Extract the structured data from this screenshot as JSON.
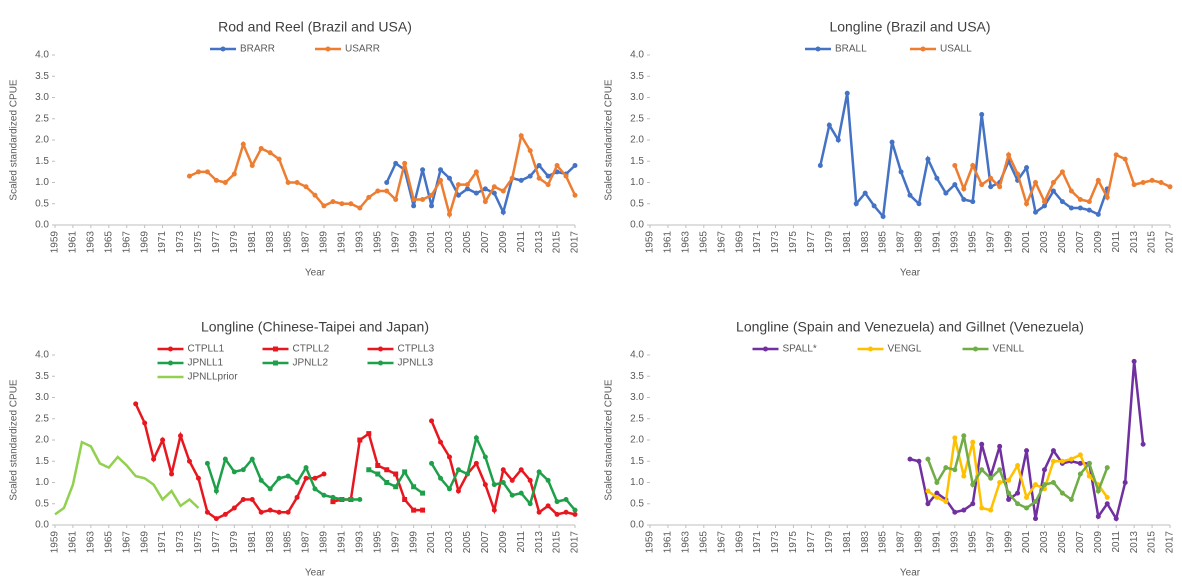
{
  "chart_data": [
    {
      "type": "line",
      "title": "Rod and Reel (Brazil and USA)",
      "xlabel": "Year",
      "ylabel": "Scaled standardized CPUE",
      "xlim": [
        1959,
        2017
      ],
      "xticks": [
        1959,
        1961,
        1963,
        1965,
        1967,
        1969,
        1971,
        1973,
        1975,
        1977,
        1979,
        1981,
        1983,
        1985,
        1987,
        1989,
        1991,
        1993,
        1995,
        1997,
        1999,
        2001,
        2003,
        2005,
        2007,
        2009,
        2011,
        2013,
        2015,
        2017
      ],
      "ylim": [
        0,
        4
      ],
      "yticks": [
        {
          "value": 0,
          "label": "0.0"
        },
        {
          "value": 0.5,
          "label": "0.5"
        },
        {
          "value": 1,
          "label": "1.0"
        },
        {
          "value": 1.5,
          "label": "1.5"
        },
        {
          "value": 2,
          "label": "2.0"
        },
        {
          "value": 2.5,
          "label": "2.5"
        },
        {
          "value": 3,
          "label": "3.0"
        },
        {
          "value": 3.5,
          "label": "3.5"
        },
        {
          "value": 4,
          "label": "4.0"
        }
      ],
      "series": [
        {
          "name": "BRARR",
          "color": "#4472c4",
          "marker": "circle",
          "x": [
            1996,
            1997,
            1998,
            1999,
            2000,
            2001,
            2002,
            2003,
            2004,
            2005,
            2006,
            2007,
            2008,
            2009,
            2010,
            2011,
            2012,
            2013,
            2014,
            2015,
            2016,
            2017
          ],
          "values": [
            1.0,
            1.45,
            1.3,
            0.45,
            1.3,
            0.45,
            1.3,
            1.1,
            0.7,
            0.85,
            0.75,
            0.85,
            0.75,
            0.3,
            1.1,
            1.05,
            1.15,
            1.4,
            1.15,
            1.25,
            1.2,
            1.4
          ]
        },
        {
          "name": "USARR",
          "color": "#ed7d31",
          "marker": "circle",
          "x": [
            1974,
            1975,
            1976,
            1977,
            1978,
            1979,
            1980,
            1981,
            1982,
            1983,
            1984,
            1985,
            1986,
            1987,
            1988,
            1989,
            1990,
            1991,
            1992,
            1993,
            1994,
            1995,
            1996,
            1997,
            1998,
            1999,
            2000,
            2001,
            2002,
            2003,
            2004,
            2005,
            2006,
            2007,
            2008,
            2009,
            2010,
            2011,
            2012,
            2013,
            2014,
            2015,
            2016,
            2017
          ],
          "values": [
            1.15,
            1.25,
            1.25,
            1.05,
            1.0,
            1.2,
            1.9,
            1.4,
            1.8,
            1.7,
            1.55,
            1.0,
            1.0,
            0.9,
            0.7,
            0.45,
            0.55,
            0.5,
            0.5,
            0.4,
            0.65,
            0.8,
            0.8,
            0.6,
            1.45,
            0.6,
            0.6,
            0.7,
            1.05,
            0.25,
            0.95,
            0.95,
            1.25,
            0.55,
            0.9,
            0.8,
            1.1,
            2.1,
            1.75,
            1.1,
            0.95,
            1.4,
            1.15,
            0.7
          ]
        }
      ]
    },
    {
      "type": "line",
      "title": "Longline (Brazil and USA)",
      "xlabel": "Year",
      "ylabel": "Scaled standardized CPUE",
      "xlim": [
        1959,
        2017
      ],
      "xticks": [
        1959,
        1961,
        1963,
        1965,
        1967,
        1969,
        1971,
        1973,
        1975,
        1977,
        1979,
        1981,
        1983,
        1985,
        1987,
        1989,
        1991,
        1993,
        1995,
        1997,
        1999,
        2001,
        2003,
        2005,
        2007,
        2009,
        2011,
        2013,
        2015,
        2017
      ],
      "ylim": [
        0,
        4
      ],
      "yticks": [
        {
          "value": 0,
          "label": "0.0"
        },
        {
          "value": 0.5,
          "label": "0.5"
        },
        {
          "value": 1,
          "label": "1.0"
        },
        {
          "value": 1.5,
          "label": "1.5"
        },
        {
          "value": 2,
          "label": "2.0"
        },
        {
          "value": 2.5,
          "label": "2.5"
        },
        {
          "value": 3,
          "label": "3.0"
        },
        {
          "value": 3.5,
          "label": "3.5"
        },
        {
          "value": 4,
          "label": "4.0"
        }
      ],
      "series": [
        {
          "name": "BRALL",
          "color": "#4472c4",
          "marker": "circle",
          "x": [
            1978,
            1979,
            1980,
            1981,
            1982,
            1983,
            1984,
            1985,
            1986,
            1987,
            1988,
            1989,
            1990,
            1991,
            1992,
            1993,
            1994,
            1995,
            1996,
            1997,
            1998,
            1999,
            2000,
            2001,
            2002,
            2003,
            2004,
            2005,
            2006,
            2007,
            2008,
            2009,
            2010
          ],
          "values": [
            1.4,
            2.35,
            2.0,
            3.1,
            0.5,
            0.75,
            0.45,
            0.2,
            1.95,
            1.25,
            0.7,
            0.5,
            1.55,
            1.1,
            0.75,
            0.95,
            0.6,
            0.55,
            2.6,
            0.9,
            1.0,
            1.5,
            1.05,
            1.35,
            0.3,
            0.45,
            0.8,
            0.55,
            0.4,
            0.4,
            0.35,
            0.25,
            0.85
          ]
        },
        {
          "name": "USALL",
          "color": "#ed7d31",
          "marker": "circle",
          "x": [
            1993,
            1994,
            1995,
            1996,
            1997,
            1998,
            1999,
            2000,
            2001,
            2002,
            2003,
            2004,
            2005,
            2006,
            2007,
            2008,
            2009,
            2010,
            2011,
            2012,
            2013,
            2014,
            2015,
            2016,
            2017
          ],
          "values": [
            1.4,
            0.85,
            1.4,
            0.95,
            1.1,
            0.9,
            1.65,
            1.2,
            0.5,
            1.0,
            0.55,
            1.0,
            1.25,
            0.8,
            0.6,
            0.55,
            1.05,
            0.65,
            1.65,
            1.55,
            0.95,
            1.0,
            1.05,
            1.0,
            0.9
          ]
        }
      ]
    },
    {
      "type": "line",
      "title": "Longline (Chinese-Taipei and Japan)",
      "xlabel": "Year",
      "ylabel": "Scaled standardized CPUE",
      "xlim": [
        1959,
        2017
      ],
      "xticks": [
        1959,
        1961,
        1963,
        1965,
        1967,
        1969,
        1971,
        1973,
        1975,
        1977,
        1979,
        1981,
        1983,
        1985,
        1987,
        1989,
        1991,
        1993,
        1995,
        1997,
        1999,
        2001,
        2003,
        2005,
        2007,
        2009,
        2011,
        2013,
        2015,
        2017
      ],
      "ylim": [
        0,
        4
      ],
      "yticks": [
        {
          "value": 0,
          "label": "0.0"
        },
        {
          "value": 0.5,
          "label": "0.5"
        },
        {
          "value": 1,
          "label": "1.0"
        },
        {
          "value": 1.5,
          "label": "1.5"
        },
        {
          "value": 2,
          "label": "2.0"
        },
        {
          "value": 2.5,
          "label": "2.5"
        },
        {
          "value": 3,
          "label": "3.0"
        },
        {
          "value": 3.5,
          "label": "3.5"
        },
        {
          "value": 4,
          "label": "4.0"
        }
      ],
      "series": [
        {
          "name": "CTPLL1",
          "color": "#e8171f",
          "marker": "circle",
          "x": [
            1968,
            1969,
            1970,
            1971,
            1972,
            1973,
            1974,
            1975,
            1976,
            1977,
            1978,
            1979,
            1980,
            1981,
            1982,
            1983,
            1984,
            1985,
            1986,
            1987,
            1988,
            1989
          ],
          "values": [
            2.85,
            2.4,
            1.55,
            2.0,
            1.2,
            2.1,
            1.5,
            1.1,
            0.3,
            0.15,
            0.25,
            0.4,
            0.6,
            0.6,
            0.3,
            0.35,
            0.3,
            0.3,
            0.65,
            1.1,
            1.1,
            1.2
          ]
        },
        {
          "name": "CTPLL2",
          "color": "#e8171f",
          "marker": "square",
          "x": [
            1990,
            1991,
            1992,
            1993,
            1994,
            1995,
            1996,
            1997,
            1998,
            1999,
            2000
          ],
          "values": [
            0.55,
            0.6,
            0.6,
            2.0,
            2.15,
            1.4,
            1.3,
            1.2,
            0.6,
            0.35,
            0.35
          ]
        },
        {
          "name": "CTPLL3",
          "color": "#e8171f",
          "marker": "circle",
          "x": [
            2001,
            2002,
            2003,
            2004,
            2005,
            2006,
            2007,
            2008,
            2009,
            2010,
            2011,
            2012,
            2013,
            2014,
            2015,
            2016,
            2017
          ],
          "values": [
            2.45,
            1.95,
            1.6,
            0.8,
            1.2,
            1.45,
            0.95,
            0.35,
            1.3,
            1.05,
            1.3,
            1.05,
            0.3,
            0.45,
            0.25,
            0.3,
            0.25
          ]
        },
        {
          "name": "JPNLL1",
          "color": "#1ea04a",
          "marker": "circle",
          "x": [
            1976,
            1977,
            1978,
            1979,
            1980,
            1981,
            1982,
            1983,
            1984,
            1985,
            1986,
            1987,
            1988,
            1989,
            1990,
            1991,
            1992,
            1993
          ],
          "values": [
            1.45,
            0.8,
            1.55,
            1.25,
            1.3,
            1.55,
            1.05,
            0.85,
            1.1,
            1.15,
            1.0,
            1.35,
            0.85,
            0.7,
            0.65,
            0.6,
            0.6,
            0.6
          ]
        },
        {
          "name": "JPNLL2",
          "color": "#1ea04a",
          "marker": "square",
          "x": [
            1994,
            1995,
            1996,
            1997,
            1998,
            1999,
            2000
          ],
          "values": [
            1.3,
            1.2,
            1.0,
            0.9,
            1.25,
            0.9,
            0.75
          ]
        },
        {
          "name": "JPNLL3",
          "color": "#1ea04a",
          "marker": "circle",
          "x": [
            2001,
            2002,
            2003,
            2004,
            2005,
            2006,
            2007,
            2008,
            2009,
            2010,
            2011,
            2012,
            2013,
            2014,
            2015,
            2016,
            2017
          ],
          "values": [
            1.45,
            1.1,
            0.85,
            1.3,
            1.2,
            2.05,
            1.6,
            0.95,
            1.0,
            0.7,
            0.75,
            0.5,
            1.25,
            1.05,
            0.55,
            0.6,
            0.35
          ]
        },
        {
          "name": "JPNLLprior",
          "color": "#92d050",
          "marker": "none",
          "x": [
            1959,
            1960,
            1961,
            1962,
            1963,
            1964,
            1965,
            1966,
            1967,
            1968,
            1969,
            1970,
            1971,
            1972,
            1973,
            1974,
            1975
          ],
          "values": [
            0.25,
            0.4,
            0.95,
            1.95,
            1.85,
            1.45,
            1.35,
            1.6,
            1.4,
            1.15,
            1.1,
            0.95,
            0.6,
            0.8,
            0.45,
            0.6,
            0.4
          ]
        }
      ]
    },
    {
      "type": "line",
      "title": "Longline (Spain and Venezuela) and Gillnet (Venezuela)",
      "xlabel": "Year",
      "ylabel": "Scaled standardized CPUE",
      "xlim": [
        1959,
        2017
      ],
      "xticks": [
        1959,
        1961,
        1963,
        1965,
        1967,
        1969,
        1971,
        1973,
        1975,
        1977,
        1979,
        1981,
        1983,
        1985,
        1987,
        1989,
        1991,
        1993,
        1995,
        1997,
        1999,
        2001,
        2003,
        2005,
        2007,
        2009,
        2011,
        2013,
        2015,
        2017
      ],
      "ylim": [
        0,
        4
      ],
      "yticks": [
        {
          "value": 0,
          "label": "0.0"
        },
        {
          "value": 0.5,
          "label": "0.5"
        },
        {
          "value": 1,
          "label": "1.0"
        },
        {
          "value": 1.5,
          "label": "1.5"
        },
        {
          "value": 2,
          "label": "2.0"
        },
        {
          "value": 2.5,
          "label": "2.5"
        },
        {
          "value": 3,
          "label": "3.0"
        },
        {
          "value": 3.5,
          "label": "3.5"
        },
        {
          "value": 4,
          "label": "4.0"
        }
      ],
      "series": [
        {
          "name": "SPALL*",
          "color": "#7030a0",
          "marker": "circle",
          "x": [
            1988,
            1989,
            1990,
            1991,
            1992,
            1993,
            1994,
            1995,
            1996,
            1997,
            1998,
            1999,
            2000,
            2001,
            2002,
            2003,
            2004,
            2005,
            2006,
            2007,
            2008,
            2009,
            2010,
            2011,
            2012,
            2013,
            2014
          ],
          "values": [
            1.55,
            1.5,
            0.5,
            0.75,
            0.6,
            0.3,
            0.35,
            0.5,
            1.9,
            1.15,
            1.85,
            0.6,
            0.75,
            1.75,
            0.15,
            1.3,
            1.75,
            1.45,
            1.5,
            1.45,
            1.45,
            0.2,
            0.5,
            0.15,
            1.0,
            3.85,
            1.9
          ]
        },
        {
          "name": "VENGL",
          "color": "#ffc000",
          "marker": "circle",
          "x": [
            1990,
            1991,
            1992,
            1993,
            1994,
            1995,
            1996,
            1997,
            1998,
            1999,
            2000,
            2001,
            2002,
            2003,
            2004,
            2005,
            2006,
            2007,
            2008,
            2009,
            2010
          ],
          "values": [
            0.8,
            0.65,
            0.55,
            2.05,
            1.15,
            1.95,
            0.4,
            0.35,
            1.0,
            1.05,
            1.4,
            0.65,
            0.95,
            0.85,
            1.5,
            1.5,
            1.55,
            1.65,
            1.15,
            0.95,
            0.65
          ]
        },
        {
          "name": "VENLL",
          "color": "#70ad47",
          "marker": "circle",
          "x": [
            1990,
            1991,
            1992,
            1993,
            1994,
            1995,
            1996,
            1997,
            1998,
            1999,
            2000,
            2001,
            2002,
            2003,
            2004,
            2005,
            2006,
            2007,
            2008,
            2009,
            2010
          ],
          "values": [
            1.55,
            1.0,
            1.35,
            1.3,
            2.1,
            0.95,
            1.3,
            1.1,
            1.3,
            0.75,
            0.5,
            0.4,
            0.55,
            0.95,
            1.0,
            0.75,
            0.6,
            1.2,
            1.45,
            0.8,
            1.35
          ]
        }
      ]
    }
  ]
}
